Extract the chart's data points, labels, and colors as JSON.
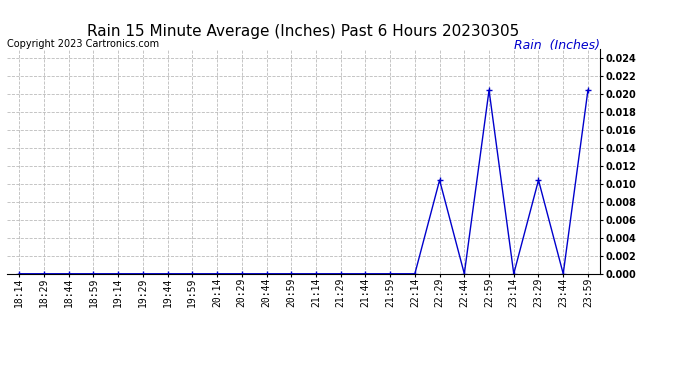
{
  "title": "Rain 15 Minute Average (Inches) Past 6 Hours 20230305",
  "copyright": "Copyright 2023 Cartronics.com",
  "legend_label": "Rain  (Inches)",
  "x_labels": [
    "18:14",
    "18:29",
    "18:44",
    "18:59",
    "19:14",
    "19:29",
    "19:44",
    "19:59",
    "20:14",
    "20:29",
    "20:44",
    "20:59",
    "21:14",
    "21:29",
    "21:44",
    "21:59",
    "22:14",
    "22:29",
    "22:44",
    "22:59",
    "23:14",
    "23:29",
    "23:44",
    "23:59"
  ],
  "y_values": [
    0.0,
    0.0,
    0.0,
    0.0,
    0.0,
    0.0,
    0.0,
    0.0,
    0.0,
    0.0,
    0.0,
    0.0,
    0.0,
    0.0,
    0.0,
    0.0,
    0.0,
    0.0104,
    0.0,
    0.0204,
    0.0,
    0.0104,
    0.0,
    0.0204
  ],
  "line_color": "#0000cc",
  "marker": "+",
  "marker_size": 4,
  "marker_linewidth": 1.0,
  "ylim": [
    0.0,
    0.025
  ],
  "yticks": [
    0.0,
    0.002,
    0.004,
    0.006,
    0.008,
    0.01,
    0.012,
    0.014,
    0.016,
    0.018,
    0.02,
    0.022,
    0.024
  ],
  "grid_color": "#bbbbbb",
  "bg_color": "#ffffff",
  "title_color": "#000000",
  "copyright_color": "#000000",
  "legend_color": "#0000cc",
  "title_fontsize": 11,
  "copyright_fontsize": 7,
  "legend_fontsize": 9,
  "tick_fontsize": 7,
  "ytick_fontsize": 7
}
